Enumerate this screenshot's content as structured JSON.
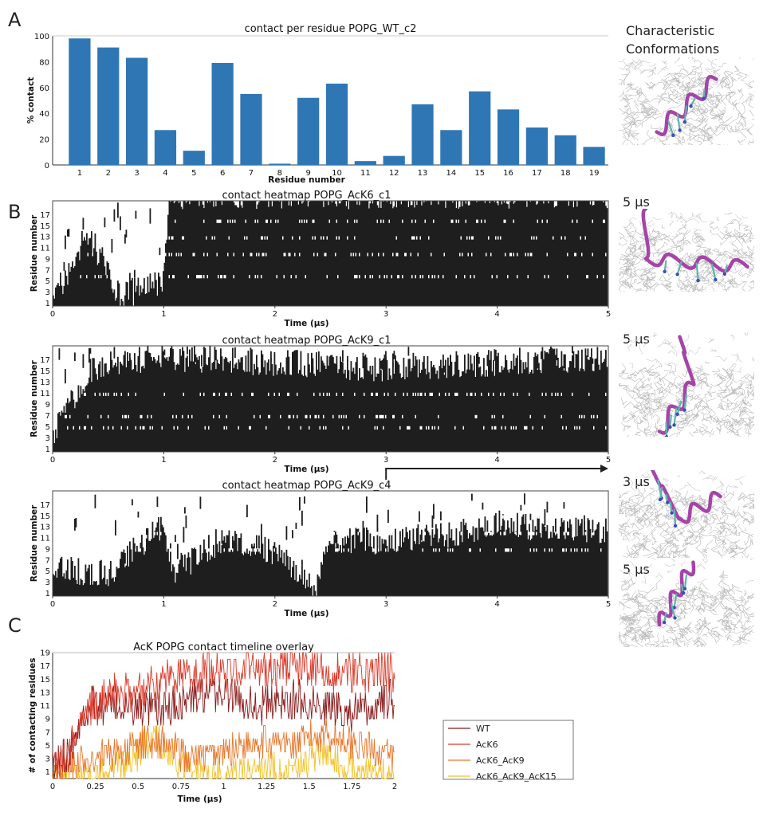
{
  "panel_labels": [
    "A",
    "B",
    "C"
  ],
  "side": {
    "title_line1": "Characteristic",
    "title_line2": "Conformations",
    "snapshot_times": [
      "5 µs",
      "5 µs",
      "3 µs",
      "5 µs"
    ]
  },
  "colors": {
    "bar": "#2f77b4",
    "heatmap": "#1e1e1e",
    "WT": "#8b1a1a",
    "AcK6": "#d83a2a",
    "AcK6_AcK9": "#e8762b",
    "AcK6_AcK9_AcK15": "#f2c22a",
    "helix": "#a544a8"
  },
  "chart_data": [
    {
      "type": "bar",
      "title": "contact per residue POPG_WT_c2",
      "xlabel": "Residue number",
      "ylabel": "% contact",
      "ylim": [
        0,
        100
      ],
      "yticks": [
        "0",
        "20",
        "40",
        "60",
        "80",
        "100"
      ],
      "categories": [
        "1",
        "2",
        "3",
        "4",
        "5",
        "6",
        "7",
        "8",
        "9",
        "10",
        "11",
        "12",
        "13",
        "14",
        "15",
        "16",
        "17",
        "18",
        "19"
      ],
      "values": [
        98,
        91,
        83,
        27,
        11,
        79,
        55,
        1,
        52,
        63,
        3,
        7,
        47,
        27,
        57,
        43,
        29,
        23,
        14
      ]
    },
    {
      "type": "heatmap",
      "title": "contact heatmap POPG_AcK6_c1",
      "xlabel": "Time (µs)",
      "ylabel": "Residue number",
      "xlim": [
        0,
        5
      ],
      "xticks": [
        "0",
        "1",
        "2",
        "3",
        "4",
        "5"
      ],
      "yticks": [
        "1",
        "3",
        "5",
        "7",
        "9",
        "11",
        "13",
        "15",
        "17"
      ],
      "residues": 19,
      "profile_time": [
        0,
        0.1,
        0.2,
        0.3,
        0.4,
        0.6,
        0.8,
        1.0,
        1.05,
        2,
        3,
        4,
        5
      ],
      "profile_level": [
        3,
        4,
        8,
        14,
        10,
        2,
        3,
        4,
        20,
        20,
        20,
        20,
        20
      ],
      "gap_residues": [
        5,
        9,
        12,
        15
      ]
    },
    {
      "type": "heatmap",
      "title": "contact heatmap POPG_AcK9_c1",
      "xlabel": "Time (µs)",
      "ylabel": "Residue number",
      "xlim": [
        0,
        5
      ],
      "xticks": [
        "0",
        "1",
        "2",
        "3",
        "4",
        "5"
      ],
      "yticks": [
        "1",
        "3",
        "5",
        "7",
        "9",
        "11",
        "13",
        "15",
        "17"
      ],
      "residues": 19,
      "profile_time": [
        0,
        0.1,
        0.2,
        0.35,
        0.5,
        1,
        2,
        3,
        4,
        5
      ],
      "profile_level": [
        2,
        7,
        10,
        15,
        16,
        17,
        16,
        15,
        16,
        17
      ],
      "gap_residues": [
        4,
        6,
        10
      ]
    },
    {
      "type": "heatmap",
      "title": "contact heatmap POPG_AcK9_c4",
      "xlabel": "Time (µs)",
      "ylabel": "Residue number",
      "xlim": [
        0,
        5
      ],
      "xticks": [
        "0",
        "1",
        "2",
        "3",
        "4",
        "5"
      ],
      "yticks": [
        "1",
        "3",
        "5",
        "7",
        "9",
        "11",
        "13",
        "15",
        "17"
      ],
      "residues": 19,
      "profile_time": [
        0,
        0.5,
        1.0,
        1.1,
        1.5,
        2.0,
        2.4,
        2.45,
        3.0,
        3.5,
        4.0,
        4.5,
        5
      ],
      "profile_level": [
        5,
        4,
        13,
        4,
        10,
        8,
        2,
        10,
        10,
        11,
        13,
        12,
        12
      ],
      "gap_residues": [
        8,
        11,
        14
      ],
      "annotation_arrow": {
        "from": 3,
        "to": 5
      }
    },
    {
      "type": "line",
      "title": "AcK POPG contact timeline overlay",
      "xlabel": "Time (µs)",
      "ylabel": "# of contacting residues",
      "xlim": [
        0,
        2
      ],
      "ylim": [
        0,
        19
      ],
      "xticks": [
        "0",
        "0.25",
        "0.5",
        "0.75",
        "1",
        "1.25",
        "1.5",
        "1.75",
        "2"
      ],
      "yticks": [
        "1",
        "3",
        "5",
        "7",
        "9",
        "11",
        "13",
        "15",
        "17",
        "19"
      ],
      "legend_position": "right",
      "series": [
        {
          "name": "WT",
          "color_key": "WT",
          "x": [
            0,
            0.1,
            0.2,
            0.4,
            0.6,
            0.8,
            1.0,
            1.2,
            1.4,
            1.6,
            1.8,
            2.0
          ],
          "y": [
            1,
            5,
            11,
            11,
            10,
            12,
            13,
            11,
            12,
            11,
            10,
            12
          ]
        },
        {
          "name": "AcK6",
          "color_key": "AcK6",
          "x": [
            0,
            0.1,
            0.2,
            0.3,
            0.4,
            0.5,
            0.6,
            0.7,
            0.8,
            1.0,
            1.2,
            1.4,
            1.6,
            1.8,
            2.0
          ],
          "y": [
            1,
            4,
            11,
            12,
            13,
            13,
            14,
            16,
            16,
            16,
            17,
            17,
            16,
            16,
            16
          ]
        },
        {
          "name": "AcK6_AcK9",
          "color_key": "AcK6_AcK9",
          "x": [
            0,
            0.2,
            0.4,
            0.6,
            0.8,
            1.0,
            1.2,
            1.4,
            1.6,
            1.8,
            2.0
          ],
          "y": [
            0,
            3,
            4,
            6,
            3,
            4,
            6,
            5,
            7,
            5,
            3
          ]
        },
        {
          "name": "AcK6_AcK9_AcK15",
          "color_key": "AcK6_AcK9_AcK15",
          "x": [
            0,
            0.2,
            0.4,
            0.6,
            0.8,
            1.0,
            1.2,
            1.4,
            1.6,
            1.8,
            2.0
          ],
          "y": [
            0,
            0,
            2,
            6,
            1,
            0,
            1,
            2,
            4,
            1,
            0
          ]
        }
      ]
    }
  ]
}
